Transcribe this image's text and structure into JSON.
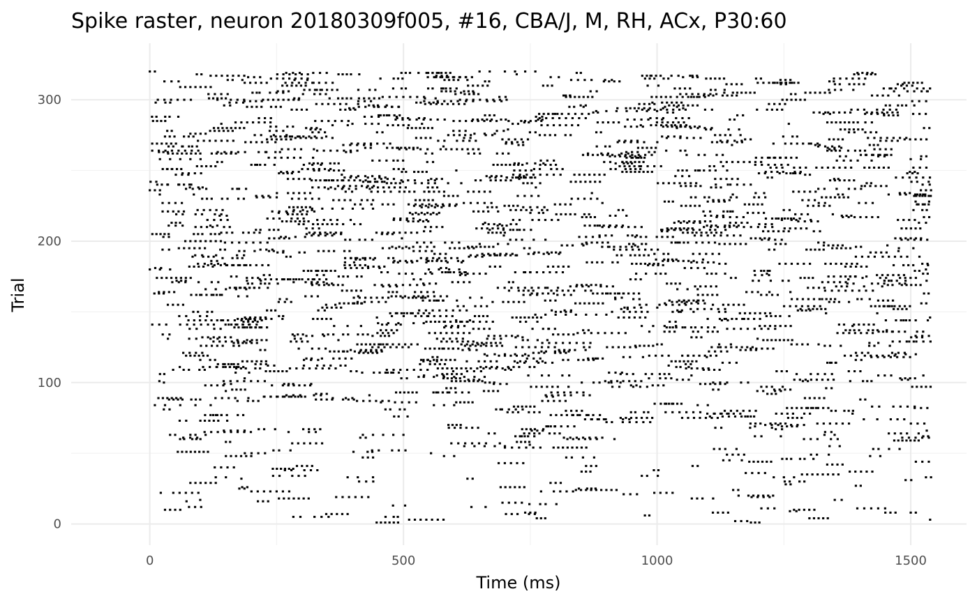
{
  "chart_data": {
    "type": "scatter",
    "subtype": "spike-raster",
    "title": "Spike raster, neuron 20180309f005, #16, CBA/J, M, RH, ACx, P30:60",
    "xlabel": "Time (ms)",
    "ylabel": "Trial",
    "xlim": [
      -155,
      1610
    ],
    "ylim": [
      -15,
      340
    ],
    "x_ticks": [
      0,
      500,
      1000,
      1500
    ],
    "x_tick_labels": [
      "0",
      "500",
      "1000",
      "1500"
    ],
    "y_ticks": [
      0,
      100,
      200,
      300
    ],
    "y_tick_labels": [
      "0",
      "100",
      "200",
      "300"
    ],
    "grid": true,
    "legend": "none",
    "marker_color": "#000000",
    "n_trials": 320,
    "time_range_ms": [
      0,
      1540
    ],
    "trial_spikes_sample": [
      {
        "trial": 8,
        "times": [
          740,
          750,
          760,
          1110,
          1120,
          1130,
          1140,
          1450,
          1460,
          1470,
          1500,
          1510
        ]
      },
      {
        "trial": 10,
        "times": [
          30,
          40,
          50,
          60,
          1270,
          1280,
          1290,
          1300,
          1310
        ]
      },
      {
        "trial": 24,
        "times": [
          840,
          850,
          860,
          870,
          880,
          890,
          900,
          910,
          920,
          1150,
          1160
        ]
      },
      {
        "trial": 29,
        "times": [
          80,
          90,
          100,
          110,
          120,
          130,
          790,
          800,
          810
        ]
      },
      {
        "trial": 33,
        "times": [
          130,
          150,
          390,
          410,
          440,
          1230,
          1250,
          1270,
          1530,
          1540
        ]
      },
      {
        "trial": 41,
        "times": [
          290,
          300,
          310,
          320,
          860,
          870,
          880,
          1070,
          1080
        ]
      },
      {
        "trial": 48,
        "times": [
          150,
          160,
          170,
          180,
          190,
          200,
          580,
          600,
          1420,
          1440
        ]
      },
      {
        "trial": 55,
        "times": [
          620,
          640,
          660,
          680,
          700,
          1340,
          1360
        ]
      },
      {
        "trial": 63,
        "times": [
          40,
          50,
          80,
          90,
          110,
          420,
          440,
          460,
          480,
          500,
          1330,
          1350
        ]
      },
      {
        "trial": 84,
        "times": [
          10,
          30,
          60,
          90,
          120,
          560,
          580,
          600,
          1080,
          1100
        ]
      },
      {
        "trial": 104,
        "times": [
          530,
          540,
          560,
          580,
          600,
          620,
          640,
          660
        ]
      },
      {
        "trial": 120,
        "times": [
          660,
          680,
          700,
          720,
          740,
          1470,
          1490,
          1510
        ]
      },
      {
        "trial": 142,
        "times": [
          450,
          470,
          490,
          520,
          540
        ]
      },
      {
        "trial": 148,
        "times": [
          760,
          780,
          800,
          820,
          840,
          860,
          880,
          900
        ]
      },
      {
        "trial": 166,
        "times": [
          110,
          130,
          150,
          170,
          190,
          1040,
          1060,
          1080
        ]
      },
      {
        "trial": 180,
        "times": [
          0,
          20,
          40,
          550,
          570,
          590,
          610,
          1530
        ]
      },
      {
        "trial": 200,
        "times": [
          70,
          80,
          90,
          100,
          110,
          120,
          130,
          140
        ]
      },
      {
        "trial": 223,
        "times": [
          320,
          340,
          360,
          380,
          400,
          420,
          440
        ]
      },
      {
        "trial": 236,
        "times": [
          0,
          10,
          20,
          1520,
          1530,
          1540
        ]
      },
      {
        "trial": 258,
        "times": [
          20,
          40,
          60,
          80,
          100,
          1500,
          1520
        ]
      },
      {
        "trial": 276,
        "times": [
          80,
          90,
          100,
          110,
          640,
          660,
          680
        ]
      },
      {
        "trial": 292,
        "times": [
          880,
          900,
          920,
          940,
          960,
          980,
          1000
        ]
      },
      {
        "trial": 309,
        "times": [
          60,
          70,
          80,
          90,
          100,
          110,
          120
        ]
      },
      {
        "trial": 320,
        "times": [
          0,
          10,
          650,
          670,
          700,
          720,
          740,
          760
        ]
      }
    ]
  }
}
